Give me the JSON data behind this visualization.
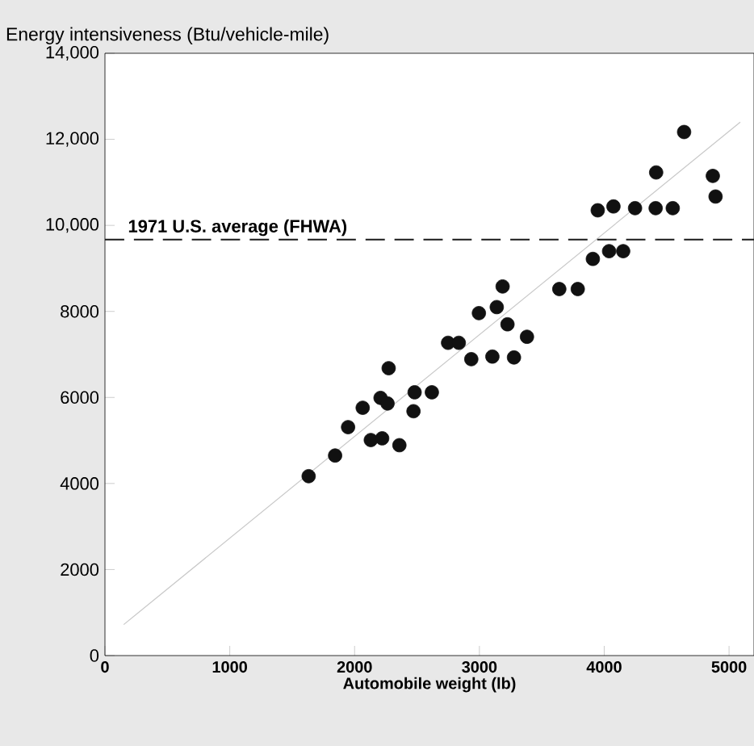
{
  "chart_data": {
    "type": "scatter",
    "ylabel": "Energy intensiveness (Btu/vehicle-mile)",
    "xlabel": "Automobile weight (lb)",
    "xlim": [
      0,
      5200
    ],
    "xticks": [
      0,
      1000,
      2000,
      3000,
      4000,
      5000
    ],
    "ylim": [
      0,
      14000
    ],
    "yticks": [
      0,
      2000,
      4000,
      6000,
      8000,
      {
        "value": 10000,
        "label": "10,000"
      },
      {
        "value": 12000,
        "label": "12,000"
      },
      {
        "value": 14000,
        "label": "14,000"
      }
    ],
    "grid": false,
    "marker": "circle",
    "ref_lines": [
      {
        "axis": "y",
        "value": 9670,
        "label": "1971 U.S. average (FHWA)",
        "color": "#1a1a1a",
        "line_style": "dashed"
      }
    ],
    "series": [
      {
        "color": "#111111",
        "x": [
          1632,
          1844,
          1948,
          2065,
          2130,
          2221,
          2208,
          2264,
          2273,
          2359,
          2481,
          2472,
          2619,
          2749,
          2835,
          2935,
          2996,
          3104,
          3139,
          3186,
          3225,
          3277,
          3381,
          3640,
          3788,
          3909,
          3948,
          4074,
          4039,
          4152,
          4247,
          4412,
          4416,
          4549,
          4640,
          4870,
          4892
        ],
        "values": [
          4170,
          4650,
          5310,
          5760,
          5010,
          5050,
          5990,
          5860,
          6680,
          4890,
          6120,
          5680,
          6120,
          7270,
          7270,
          6890,
          7960,
          6950,
          8100,
          8580,
          7700,
          6930,
          7410,
          8520,
          8520,
          9220,
          10350,
          10440,
          9400,
          9400,
          10400,
          10400,
          11230,
          10400,
          12170,
          11150,
          10670
        ]
      },
      {
        "type": "line",
        "marker": "none",
        "color": "#c8c8c8",
        "x": [
          150,
          5090
        ],
        "values": [
          720,
          12400
        ]
      }
    ]
  }
}
